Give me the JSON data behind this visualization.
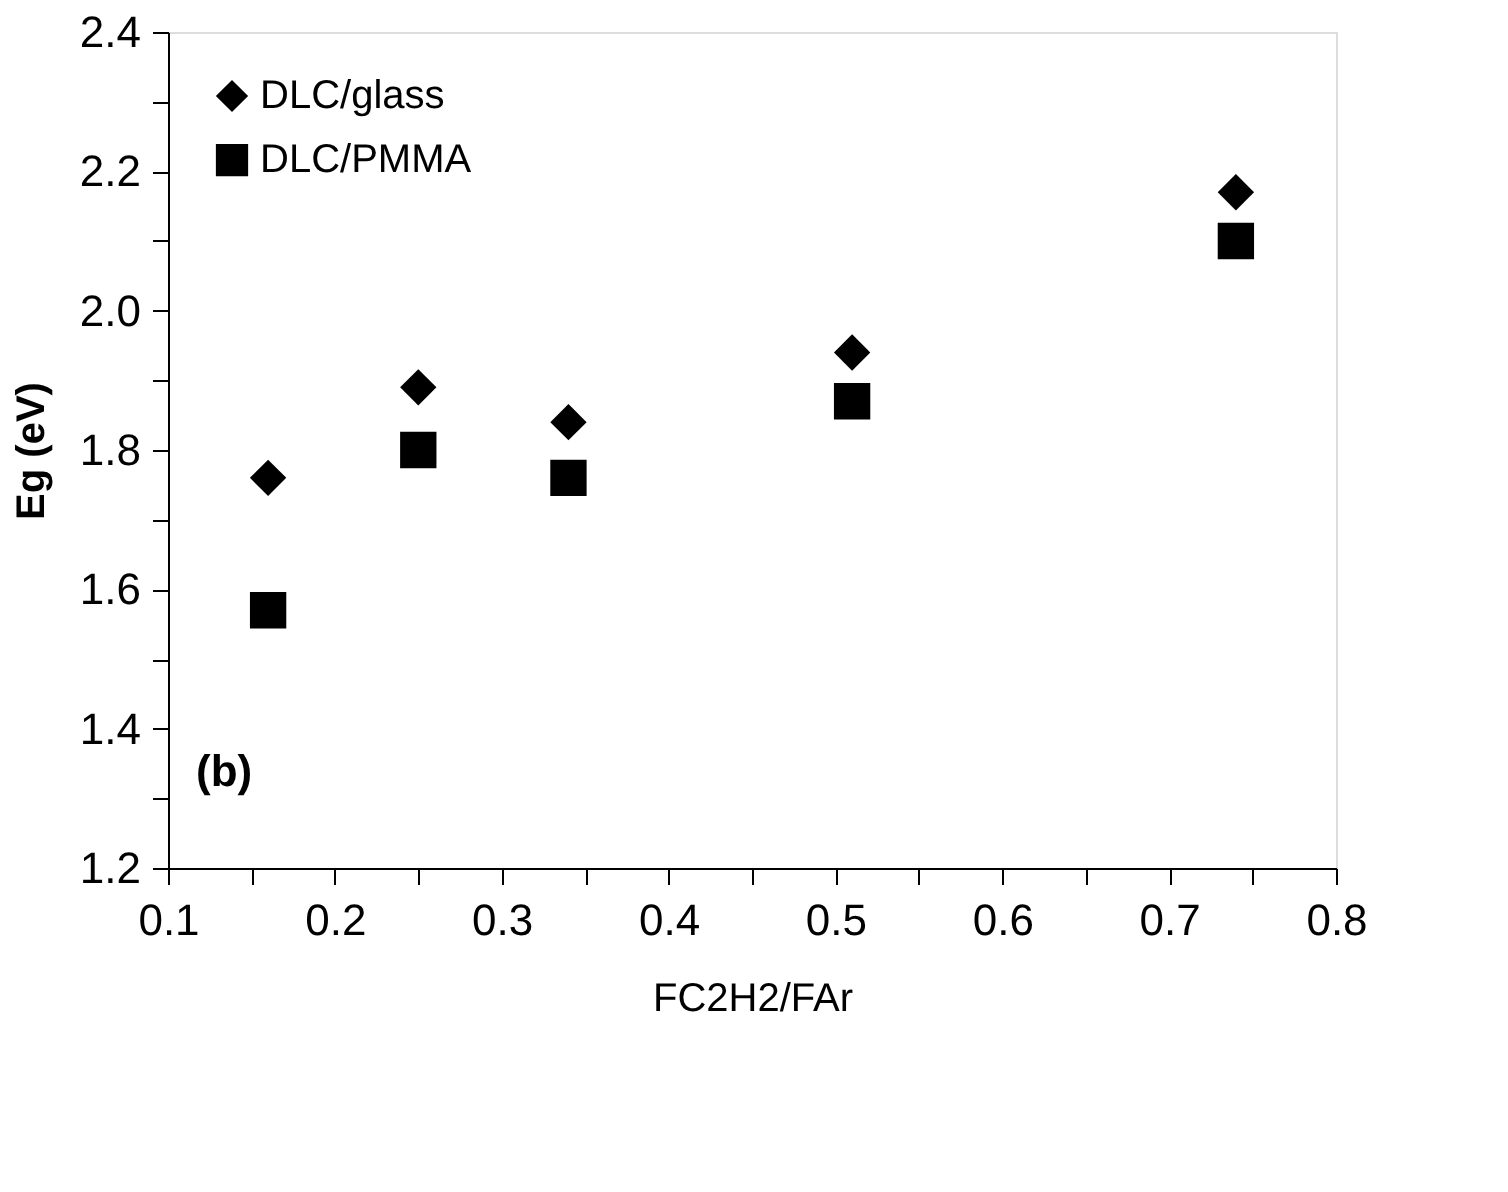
{
  "chart_data": {
    "type": "scatter",
    "xlabel": "FC2H2/FAr",
    "ylabel": "Eg (eV)",
    "series": [
      {
        "name": "DLC/glass",
        "color": "#000000",
        "marker": "diamond",
        "x": [
          0.16,
          0.25,
          0.34,
          0.51,
          0.74
        ],
        "values": [
          1.76,
          1.89,
          1.84,
          1.94,
          2.17
        ]
      },
      {
        "name": "DLC/PMMA",
        "color": "#000000",
        "marker": "square",
        "x": [
          0.16,
          0.25,
          0.34,
          0.51,
          0.74
        ],
        "values": [
          1.57,
          1.8,
          1.76,
          1.87,
          2.1
        ]
      }
    ],
    "xlim": [
      0.1,
      0.8
    ],
    "ylim": [
      1.2,
      2.4
    ],
    "xticks": [
      0.1,
      {
        "value": 0.15,
        "label": null
      },
      0.2,
      {
        "value": 0.25,
        "label": null
      },
      0.3,
      {
        "value": 0.35,
        "label": null
      },
      0.4,
      {
        "value": 0.45,
        "label": null
      },
      0.5,
      {
        "value": 0.55,
        "label": null
      },
      0.6,
      {
        "value": 0.65,
        "label": null
      },
      0.7,
      {
        "value": 0.75,
        "label": null
      },
      0.8
    ],
    "yticks": [
      {
        "value": 1.2,
        "label": "1.2"
      },
      {
        "value": 1.3,
        "label": null
      },
      {
        "value": 1.4,
        "label": "1.4"
      },
      {
        "value": 1.5,
        "label": null
      },
      {
        "value": 1.6,
        "label": "1.6"
      },
      {
        "value": 1.7,
        "label": null
      },
      {
        "value": 1.8,
        "label": "1.8"
      },
      {
        "value": 1.9,
        "label": null
      },
      {
        "value": 2.0,
        "label": "2.0"
      },
      {
        "value": 2.1,
        "label": null
      },
      {
        "value": 2.2,
        "label": "2.2"
      },
      {
        "value": 2.3,
        "label": null
      },
      {
        "value": 2.4,
        "label": "2.4"
      }
    ],
    "annotations": [
      "(b)"
    ],
    "legend": "top left",
    "grid": false
  }
}
